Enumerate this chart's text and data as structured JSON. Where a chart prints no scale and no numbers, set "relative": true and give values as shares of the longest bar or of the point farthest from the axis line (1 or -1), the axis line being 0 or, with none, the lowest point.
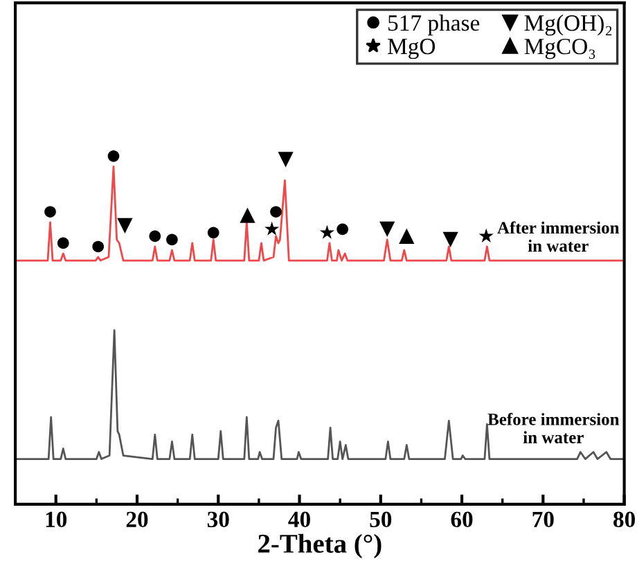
{
  "chart_data": {
    "type": "line",
    "relative": true,
    "xlabel": "2-Theta (°)",
    "xlim": [
      5,
      80
    ],
    "xticks": [
      10,
      20,
      30,
      40,
      50,
      60,
      70,
      80
    ],
    "legend": "top right",
    "grid": false,
    "series": [
      {
        "name": "After immersion in water",
        "color": "#f0474b",
        "x": [
          5,
          9.0,
          9.3,
          9.6,
          10.6,
          10.9,
          11.2,
          14.9,
          15.2,
          15.5,
          16.5,
          17.1,
          17.5,
          17.8,
          18.3,
          21.9,
          22.2,
          22.5,
          24.0,
          24.3,
          24.6,
          26.5,
          26.8,
          27.1,
          29.1,
          29.4,
          29.7,
          33.2,
          33.5,
          33.8,
          35.0,
          35.3,
          35.6,
          36.8,
          37.1,
          37.4,
          37.6,
          38.2,
          38.7,
          43.4,
          43.7,
          44.0,
          44.6,
          44.8,
          45.2,
          45.6,
          45.9,
          50.4,
          50.8,
          51.2,
          52.6,
          52.9,
          53.2,
          58.1,
          58.4,
          58.7,
          62.8,
          63.1,
          63.4,
          80
        ],
        "values": [
          0.7,
          0.7,
          0.81,
          0.7,
          0.7,
          0.72,
          0.7,
          0.7,
          0.71,
          0.7,
          0.71,
          0.97,
          0.76,
          0.75,
          0.7,
          0.7,
          0.74,
          0.7,
          0.7,
          0.73,
          0.7,
          0.7,
          0.75,
          0.7,
          0.7,
          0.76,
          0.7,
          0.7,
          0.81,
          0.7,
          0.7,
          0.75,
          0.7,
          0.71,
          0.77,
          0.75,
          0.76,
          0.93,
          0.7,
          0.7,
          0.75,
          0.7,
          0.7,
          0.73,
          0.7,
          0.72,
          0.7,
          0.7,
          0.76,
          0.7,
          0.7,
          0.73,
          0.7,
          0.7,
          0.74,
          0.7,
          0.7,
          0.74,
          0.7,
          0.7
        ]
      },
      {
        "name": "Before immersion in water",
        "color": "#555555",
        "x": [
          5,
          9.1,
          9.4,
          9.7,
          10.6,
          10.9,
          11.2,
          15.0,
          15.3,
          15.6,
          16.6,
          17.2,
          17.6,
          17.8,
          18.3,
          21.9,
          22.2,
          22.5,
          24.0,
          24.3,
          24.6,
          26.5,
          26.8,
          27.1,
          30.0,
          30.3,
          30.6,
          33.2,
          33.5,
          33.8,
          34.9,
          35.1,
          35.4,
          36.8,
          37.1,
          37.4,
          37.8,
          39.7,
          39.9,
          40.2,
          43.5,
          43.8,
          44.1,
          44.7,
          45.0,
          45.3,
          45.7,
          46.0,
          50.6,
          50.9,
          51.2,
          52.9,
          53.2,
          53.5,
          57.9,
          58.4,
          58.9,
          59.9,
          60.1,
          60.4,
          62.8,
          63.1,
          63.4,
          74.2,
          74.6,
          75.2,
          76.2,
          76.7,
          77.8,
          78.3,
          80
        ],
        "values": [
          0.13,
          0.13,
          0.25,
          0.13,
          0.13,
          0.16,
          0.13,
          0.13,
          0.15,
          0.13,
          0.14,
          0.5,
          0.21,
          0.2,
          0.14,
          0.13,
          0.2,
          0.13,
          0.13,
          0.18,
          0.13,
          0.13,
          0.2,
          0.13,
          0.13,
          0.21,
          0.13,
          0.13,
          0.25,
          0.13,
          0.13,
          0.15,
          0.13,
          0.13,
          0.22,
          0.24,
          0.13,
          0.13,
          0.15,
          0.13,
          0.13,
          0.22,
          0.13,
          0.13,
          0.18,
          0.13,
          0.17,
          0.13,
          0.13,
          0.18,
          0.13,
          0.13,
          0.17,
          0.13,
          0.13,
          0.24,
          0.13,
          0.13,
          0.14,
          0.13,
          0.13,
          0.23,
          0.13,
          0.13,
          0.15,
          0.13,
          0.15,
          0.13,
          0.15,
          0.13,
          0.13
        ]
      },
      {
        "name": "517 phase",
        "type": "scatter",
        "marker": "circle",
        "color": "#000000",
        "x": [
          9.3,
          10.9,
          15.2,
          17.1,
          22.2,
          24.3,
          29.4,
          37.1,
          45.3
        ],
        "values": [
          0.84,
          0.75,
          0.74,
          1,
          0.77,
          0.76,
          0.78,
          0.84,
          0.79
        ]
      },
      {
        "name": "MgO",
        "type": "scatter",
        "marker": "star",
        "color": "#000000",
        "x": [
          36.6,
          43.4,
          63.0
        ],
        "values": [
          0.79,
          0.78,
          0.77
        ]
      },
      {
        "name": "Mg(OH)₂",
        "type": "scatter",
        "marker": "triangle_down",
        "color": "#000000",
        "x": [
          18.5,
          38.3,
          50.8,
          58.6
        ],
        "values": [
          0.8,
          0.99,
          0.79,
          0.76
        ]
      },
      {
        "name": "MgCO₃",
        "type": "scatter",
        "marker": "triangle",
        "color": "#000000",
        "x": [
          33.6,
          53.2
        ],
        "values": [
          0.83,
          0.77
        ]
      }
    ]
  }
}
